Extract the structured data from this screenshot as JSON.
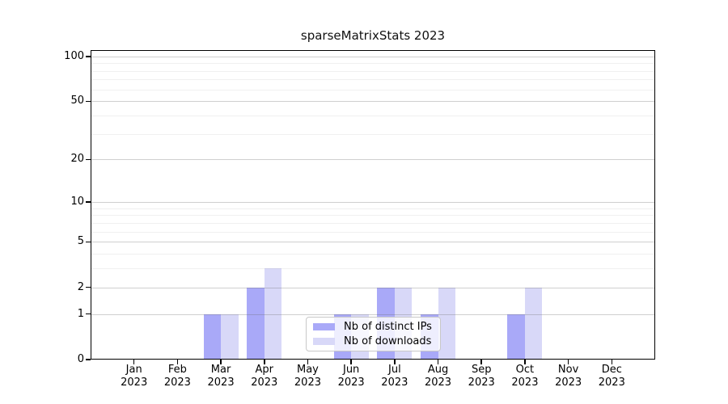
{
  "chart_data": {
    "type": "bar",
    "title": "sparseMatrixStats 2023",
    "scale": "log1p",
    "grid": "horizontal",
    "legend_position": "inside-bottom-center",
    "categories": [
      "Jan 2023",
      "Feb 2023",
      "Mar 2023",
      "Apr 2023",
      "May 2023",
      "Jun 2023",
      "Jul 2023",
      "Aug 2023",
      "Sep 2023",
      "Oct 2023",
      "Nov 2023",
      "Dec 2023"
    ],
    "series": [
      {
        "name": "Nb of distinct IPs",
        "color": "#a9a9f8",
        "values": [
          0,
          0,
          1,
          2,
          0,
          1,
          2,
          1,
          0,
          1,
          0,
          0
        ]
      },
      {
        "name": "Nb of downloads",
        "color": "#d8d8f8",
        "values": [
          0,
          0,
          1,
          3,
          0,
          1,
          2,
          2,
          0,
          2,
          0,
          0
        ]
      }
    ],
    "yticks": [
      0,
      1,
      2,
      5,
      10,
      20,
      50,
      100
    ],
    "minor_yticks": [
      3,
      4,
      6,
      7,
      8,
      9,
      30,
      40,
      60,
      70,
      80,
      90
    ],
    "ylim": [
      0,
      112
    ],
    "xlabel": "",
    "ylabel": "",
    "colors": {
      "axis": "#000000",
      "major_grid": "#cfcfcf",
      "minor_grid": "#ececec",
      "background": "#ffffff"
    }
  }
}
